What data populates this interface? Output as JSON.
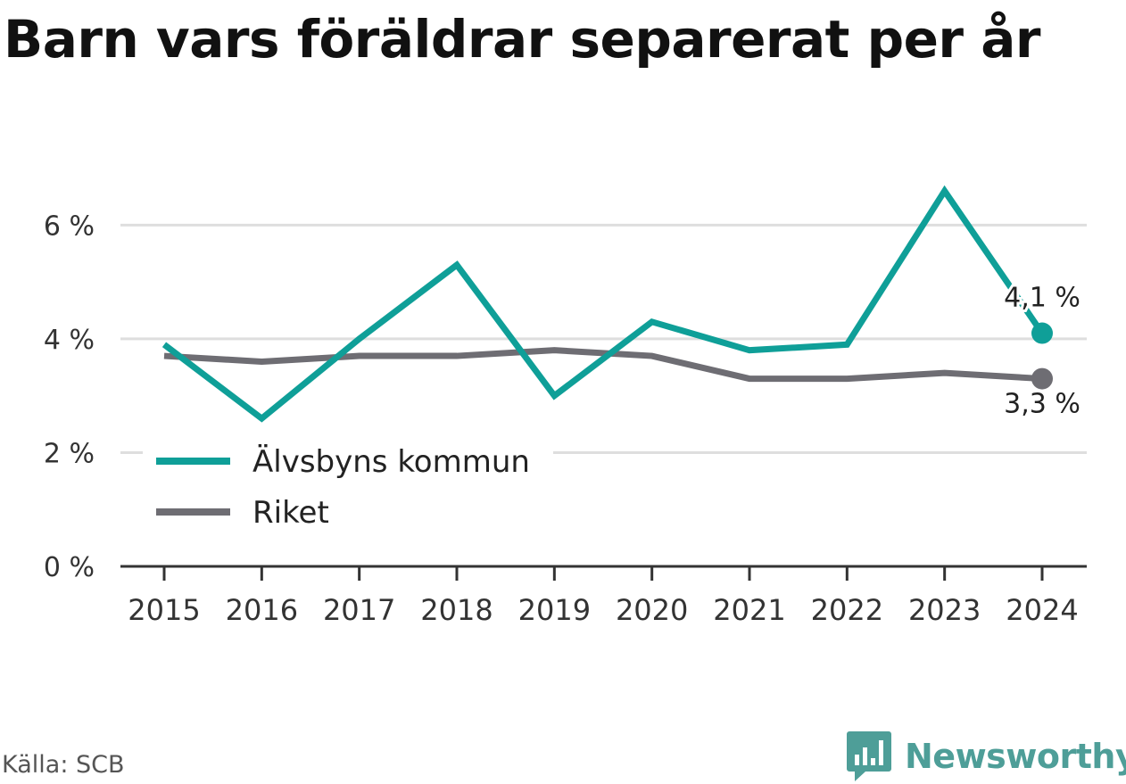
{
  "title": "Barn vars föräldrar separerat per år",
  "source": "Källa: SCB",
  "brand": "Newsworthy",
  "colors": {
    "accent": "#0f9f98",
    "secondary": "#6e6d73",
    "grid": "#dedede",
    "axis": "#333333"
  },
  "chart_data": {
    "type": "line",
    "x": [
      "2015",
      "2016",
      "2017",
      "2018",
      "2019",
      "2020",
      "2021",
      "2022",
      "2023",
      "2024"
    ],
    "yticks": [
      0,
      2,
      4,
      6
    ],
    "ytick_labels": [
      "0 %",
      "2 %",
      "4 %",
      "6 %"
    ],
    "ylim": [
      0,
      6.9
    ],
    "grid": true,
    "legend_position": "lower-left",
    "series": [
      {
        "name": "Älvsbyns kommun",
        "color": "#0f9f98",
        "values": [
          3.9,
          2.6,
          4.0,
          5.3,
          3.0,
          4.3,
          3.8,
          3.9,
          6.6,
          4.1
        ],
        "end_label": "4,1 %"
      },
      {
        "name": "Riket",
        "color": "#6e6d73",
        "values": [
          3.7,
          3.6,
          3.7,
          3.7,
          3.8,
          3.7,
          3.3,
          3.3,
          3.4,
          3.3
        ],
        "end_label": "3,3 %"
      }
    ]
  }
}
